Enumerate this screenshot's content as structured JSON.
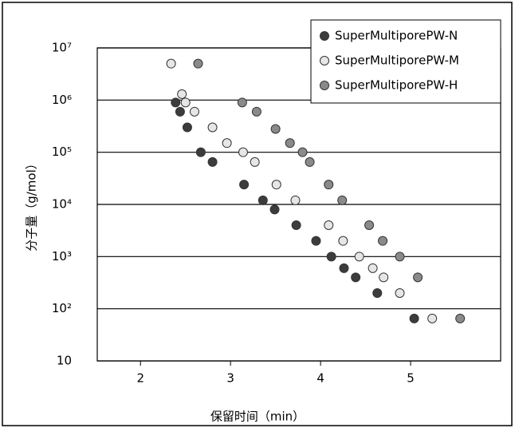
{
  "chart_data": {
    "type": "scatter",
    "xlabel": "保留时间（min）",
    "ylabel": "分子量（g/mol）",
    "xlim": [
      1.52,
      6.0
    ],
    "xticks": [
      2,
      3,
      4,
      5
    ],
    "ylim": [
      10,
      10000000
    ],
    "yscale": "log",
    "grid": true,
    "legend": "upper right",
    "yticks": [
      10,
      {
        "value": 100,
        "label": "10²"
      },
      {
        "value": 1000,
        "label": "10³"
      },
      {
        "value": 10000,
        "label": "10⁴"
      },
      {
        "value": 100000,
        "label": "10⁵"
      },
      {
        "value": 1000000,
        "label": "10⁶"
      },
      {
        "value": 10000000,
        "label": "10⁷"
      }
    ],
    "series": [
      {
        "name": "SuperMultiporePW-N",
        "color": "#3c3c3c",
        "x": [
          2.39,
          2.44,
          2.52,
          2.67,
          2.8,
          3.15,
          3.36,
          3.49,
          3.73,
          3.95,
          4.12,
          4.26,
          4.39,
          4.63,
          5.04
        ],
        "values": [
          900000,
          600000,
          300000,
          100000,
          65000,
          24000,
          12000,
          8000,
          4000,
          2000,
          1000,
          600,
          400,
          200,
          65
        ]
      },
      {
        "name": "SuperMultiporePW-M",
        "color": "#e6e6e6",
        "x": [
          2.34,
          2.46,
          2.5,
          2.6,
          2.8,
          2.96,
          3.14,
          3.27,
          3.51,
          3.72,
          4.09,
          4.25,
          4.43,
          4.58,
          4.7,
          4.88,
          5.24
        ],
        "values": [
          5000000,
          1300000,
          900000,
          600000,
          300000,
          150000,
          100000,
          65000,
          24000,
          12000,
          4000,
          2000,
          1000,
          600,
          400,
          200,
          65
        ]
      },
      {
        "name": "SuperMultiporePW-H",
        "color": "#8a8a8a",
        "x": [
          2.64,
          3.13,
          3.29,
          3.5,
          3.66,
          3.8,
          3.88,
          4.09,
          4.24,
          4.54,
          4.69,
          4.88,
          5.08,
          5.55
        ],
        "values": [
          5000000,
          900000,
          600000,
          280000,
          150000,
          100000,
          65000,
          24000,
          12000,
          4000,
          2000,
          1000,
          400,
          65
        ]
      }
    ]
  }
}
